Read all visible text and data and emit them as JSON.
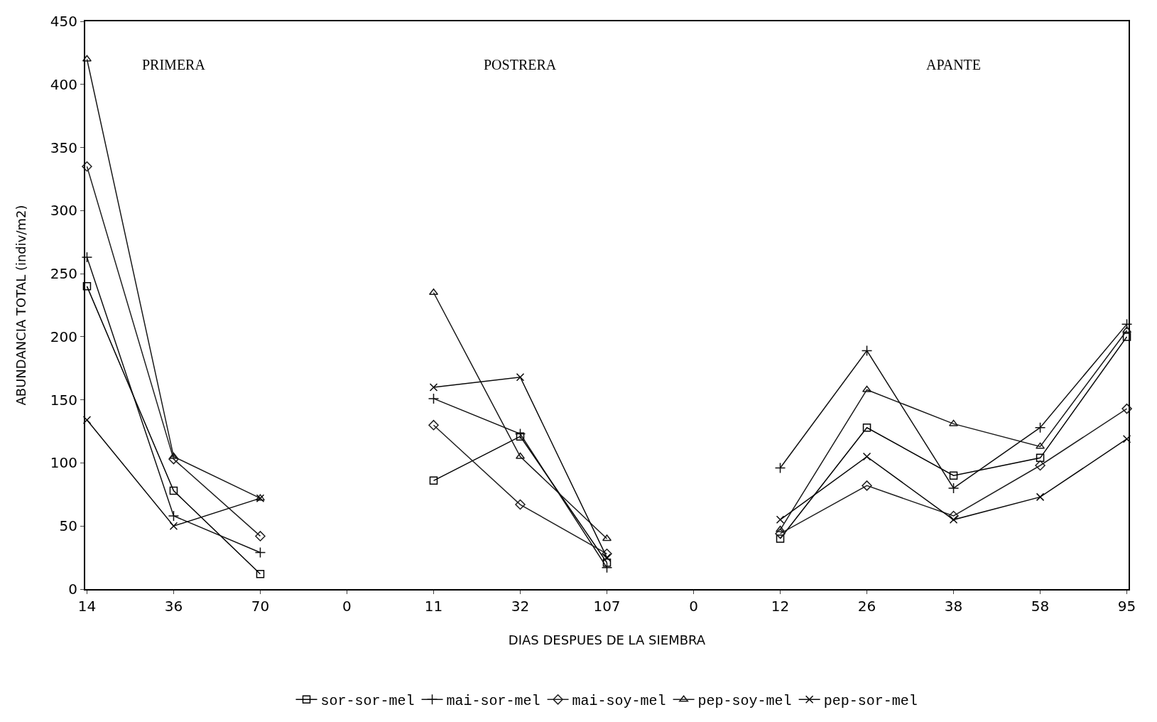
{
  "chart_data": {
    "type": "line",
    "xlabel": "DIAS DESPUES DE LA SIEMBRA",
    "ylabel": "ABUNDANCIA TOTAL (indiv/m2)",
    "categories": [
      "14",
      "36",
      "70",
      "0",
      "11",
      "32",
      "107",
      "0",
      "12",
      "26",
      "38",
      "58",
      "95"
    ],
    "annotations": [
      "PRIMERA",
      "POSTRERA",
      "APANTE"
    ],
    "ylim": [
      0,
      450
    ],
    "yticks": [
      0,
      50,
      100,
      150,
      200,
      250,
      300,
      350,
      400,
      450
    ],
    "legend": "bottom",
    "line_style": "solid",
    "series": [
      {
        "name": "sor-sor-mel",
        "color": "#000000",
        "marker": "square",
        "values": [
          240,
          78,
          12,
          null,
          86,
          121,
          21,
          null,
          40,
          128,
          90,
          104,
          200
        ]
      },
      {
        "name": "mai-sor-mel",
        "color": "#101010",
        "marker": "cross",
        "values": [
          263,
          58,
          29,
          null,
          151,
          123,
          17,
          null,
          96,
          189,
          80,
          128,
          210
        ]
      },
      {
        "name": "mai-soy-mel",
        "color": "#202020",
        "marker": "diamond",
        "values": [
          335,
          103,
          42,
          null,
          130,
          67,
          28,
          null,
          44,
          82,
          58,
          98,
          143
        ]
      },
      {
        "name": "pep-soy-mel",
        "color": "#181818",
        "marker": "triangle",
        "values": [
          420,
          105,
          72,
          null,
          235,
          105,
          40,
          null,
          47,
          158,
          131,
          113,
          205
        ]
      },
      {
        "name": "pep-sor-mel",
        "color": "#080808",
        "marker": "x",
        "values": [
          134,
          50,
          72,
          null,
          160,
          168,
          25,
          null,
          55,
          105,
          55,
          73,
          119
        ]
      }
    ]
  }
}
